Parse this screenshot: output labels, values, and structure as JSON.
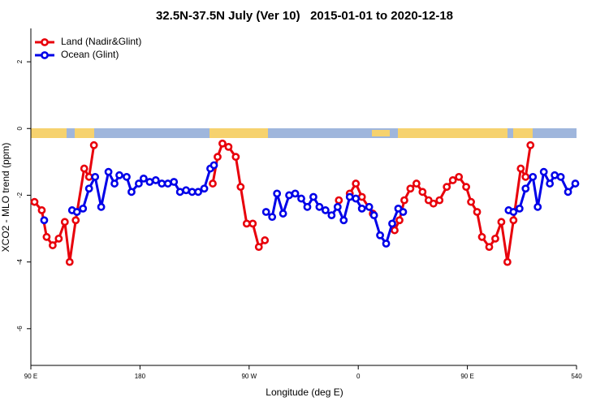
{
  "chart_data": {
    "type": "line",
    "title": "32.5N-37.5N July (Ver 10)   2015-01-01 to 2020-12-18",
    "x_label": "Longitude (deg E)",
    "y_label": "XCO2 - MLO trend (ppm)",
    "xlim": [
      90,
      540
    ],
    "ylim": [
      -7.1,
      3
    ],
    "xticks": [
      {
        "value": 90,
        "label": "90 E"
      },
      180,
      {
        "value": 270,
        "label": "90 W"
      },
      {
        "value": 360,
        "label": "0"
      },
      {
        "value": 450,
        "label": "90 E"
      },
      540
    ],
    "yticks": [
      2,
      0,
      -2,
      -4,
      -6
    ],
    "legend": "top-left",
    "series": [
      {
        "name": "Land (Nadir&Glint)",
        "color": "#e8000b",
        "x": [
          93,
          99,
          103,
          108,
          113,
          118,
          122,
          127,
          134,
          138,
          142,
          null,
          240,
          244,
          248,
          253,
          259,
          263,
          268,
          273,
          278,
          283,
          null,
          344,
          null,
          353,
          358,
          363,
          372,
          null,
          390,
          394,
          398,
          403,
          408,
          413,
          418,
          422,
          427,
          433,
          438,
          443,
          449,
          453,
          458,
          462,
          468,
          473,
          478,
          483,
          488,
          494,
          498,
          502
        ],
        "values": [
          -2.2,
          -2.45,
          -3.25,
          -3.5,
          -3.3,
          -2.8,
          -4.0,
          -2.75,
          -1.2,
          -1.45,
          -0.5,
          null,
          -1.65,
          -0.85,
          -0.45,
          -0.55,
          -0.85,
          -1.75,
          -2.85,
          -2.85,
          -3.55,
          -3.35,
          null,
          -2.15,
          null,
          -1.95,
          -1.65,
          -2.05,
          -2.55,
          null,
          -3.05,
          -2.75,
          -2.15,
          -1.8,
          -1.65,
          -1.9,
          -2.15,
          -2.25,
          -2.15,
          -1.75,
          -1.55,
          -1.45,
          -1.75,
          -2.2,
          -2.5,
          -3.25,
          -3.55,
          -3.3,
          -2.8,
          -4.0,
          -2.75,
          -1.2,
          -1.45,
          -0.5
        ]
      },
      {
        "name": "Ocean (Glint)",
        "color": "#0000e8",
        "x": [
          101,
          null,
          124,
          128,
          133,
          138,
          143,
          148,
          154,
          159,
          163,
          169,
          173,
          179,
          183,
          188,
          193,
          198,
          203,
          208,
          213,
          218,
          223,
          228,
          233,
          238,
          241,
          null,
          284,
          289,
          293,
          298,
          303,
          308,
          313,
          318,
          323,
          328,
          333,
          338,
          343,
          348,
          353,
          358,
          363,
          369,
          373,
          378,
          383,
          388,
          393,
          397,
          null,
          484,
          488,
          493,
          498,
          504,
          508,
          513,
          518,
          522,
          527,
          533,
          539
        ],
        "values": [
          -2.75,
          null,
          -2.45,
          -2.5,
          -2.4,
          -1.8,
          -1.45,
          -2.35,
          -1.3,
          -1.65,
          -1.4,
          -1.45,
          -1.9,
          -1.65,
          -1.5,
          -1.6,
          -1.55,
          -1.65,
          -1.65,
          -1.6,
          -1.9,
          -1.85,
          -1.9,
          -1.9,
          -1.8,
          -1.2,
          -1.1,
          null,
          -2.5,
          -2.65,
          -1.95,
          -2.55,
          -2.0,
          -1.95,
          -2.1,
          -2.35,
          -2.05,
          -2.35,
          -2.45,
          -2.6,
          -2.35,
          -2.75,
          -2.05,
          -2.1,
          -2.4,
          -2.35,
          -2.6,
          -3.2,
          -3.45,
          -2.85,
          -2.4,
          -2.5,
          null,
          -2.45,
          -2.5,
          -2.4,
          -1.8,
          -1.45,
          -2.35,
          -1.3,
          -1.65,
          -1.4,
          -1.45,
          -1.9,
          -1.65
        ]
      }
    ]
  }
}
